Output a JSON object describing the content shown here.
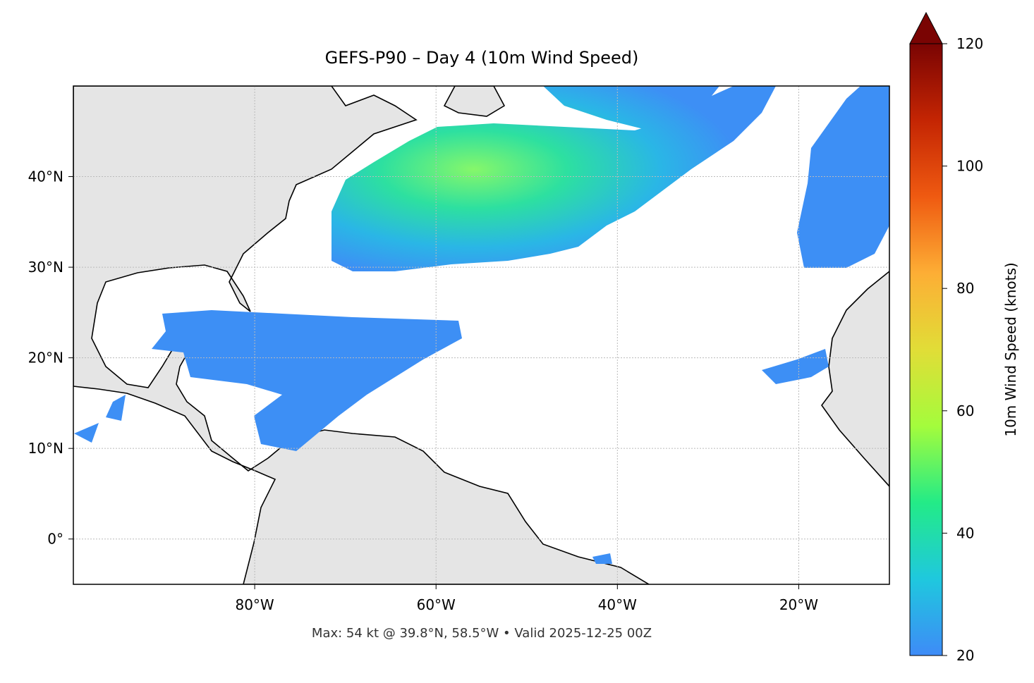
{
  "chart_data": {
    "type": "map",
    "title": "GEFS-P90 – Day 4 (10m Wind Speed)",
    "subtitle": "Max: 54 kt @ 39.8°N, 58.5°W • Valid 2025-12-25 00Z",
    "xlim": [
      -100,
      -10
    ],
    "ylim": [
      -5,
      50
    ],
    "xticks": [
      {
        "value": -80,
        "label": "80°W"
      },
      {
        "value": -60,
        "label": "60°W"
      },
      {
        "value": -40,
        "label": "40°W"
      },
      {
        "value": -20,
        "label": "20°W"
      }
    ],
    "yticks": [
      {
        "value": 0,
        "label": "0°"
      },
      {
        "value": 10,
        "label": "10°N"
      },
      {
        "value": 20,
        "label": "20°N"
      },
      {
        "value": 30,
        "label": "30°N"
      },
      {
        "value": 40,
        "label": "40°N"
      }
    ],
    "grid": true,
    "colorbar": {
      "label": "10m Wind Speed (knots)",
      "lim": [
        20,
        120
      ],
      "ticks": [
        20,
        40,
        60,
        80,
        100,
        120
      ],
      "extend": "max",
      "colors": [
        "#3e8bf7",
        "#1fc8de",
        "#23eb87",
        "#a4fc3c",
        "#e1dd37",
        "#fdae35",
        "#ef5a11",
        "#c42503",
        "#7a0403"
      ]
    }
  }
}
